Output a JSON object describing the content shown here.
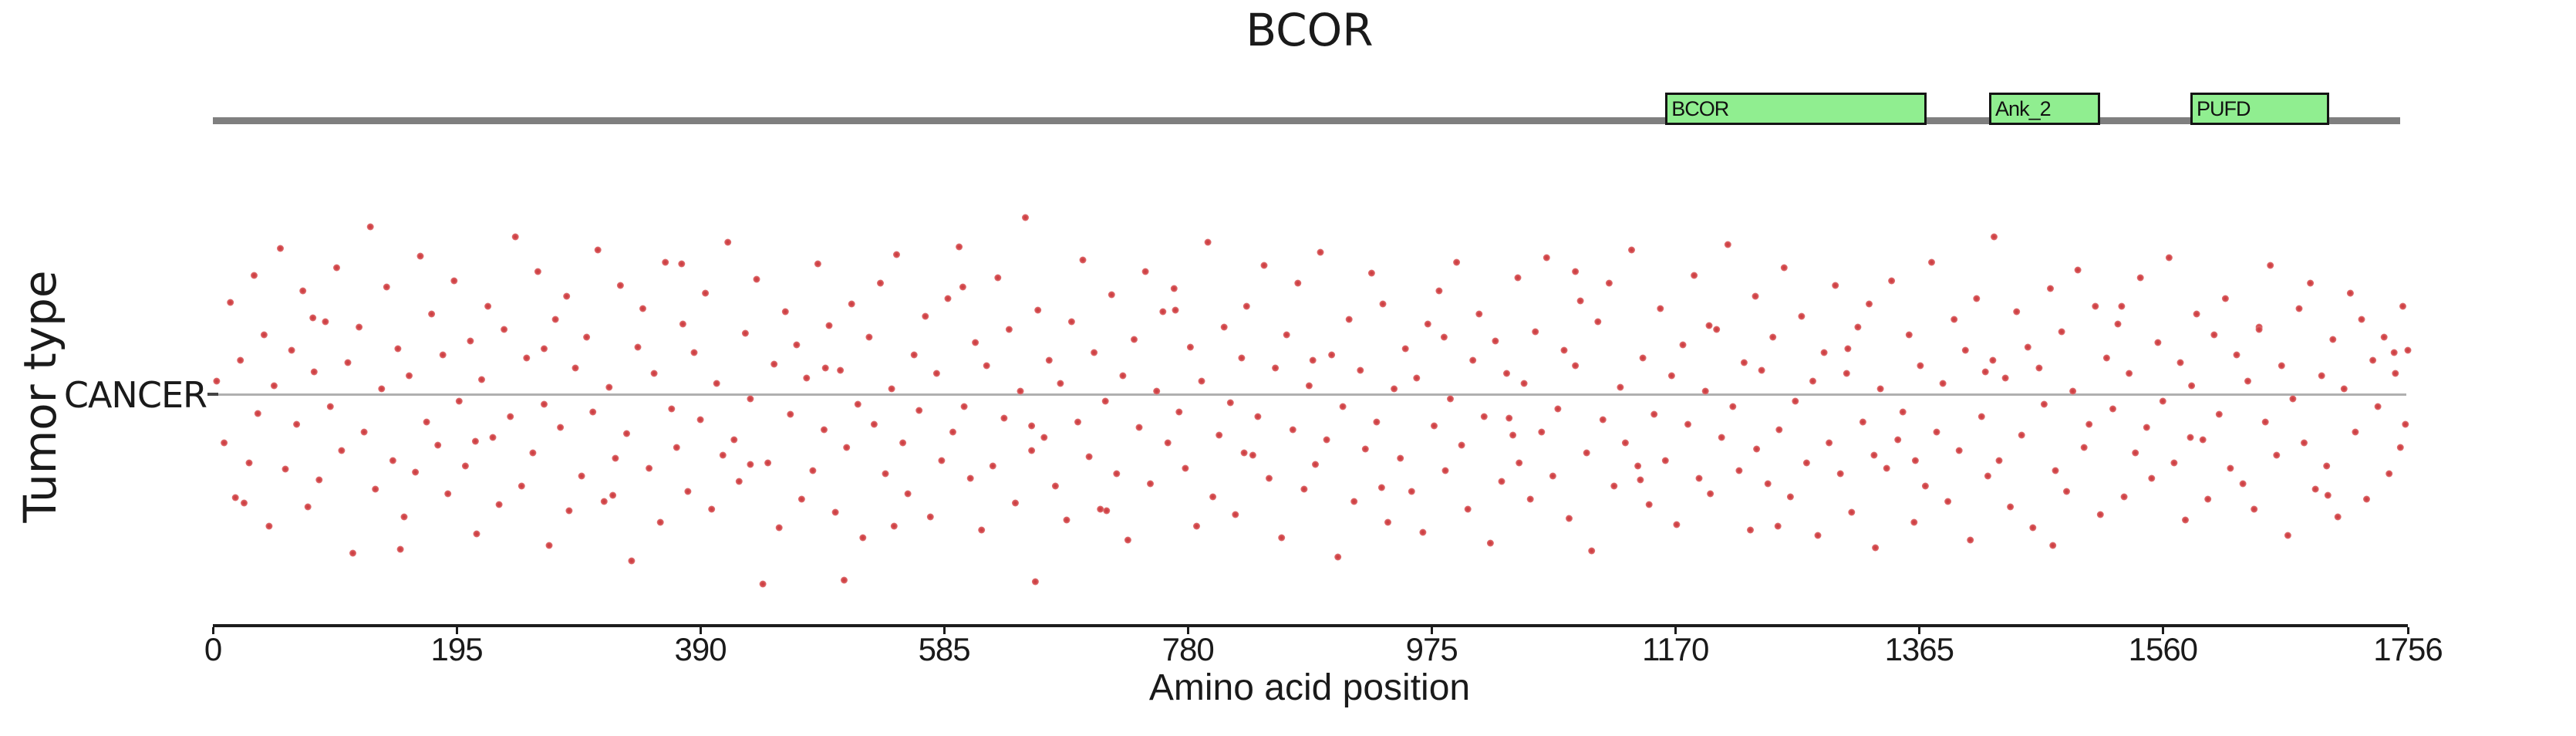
{
  "figure": {
    "title": "BCOR",
    "xlabel": "Amino acid position",
    "ylabel": "Tumor type",
    "category_label": "CANCER"
  },
  "colors": {
    "background": "#ffffff",
    "text": "#1a1a1a",
    "backbone": "#7f7f7f",
    "domain_fill": "#90ee90",
    "domain_border": "#141414",
    "row_line": "#b0b0b0",
    "y_tick": "#444444",
    "axis": "#1c1c1c",
    "point": "#d4494c",
    "point_core": "#c63b3e",
    "point_edge": "#e07a7c"
  },
  "gene": {
    "name": "BCOR",
    "length_aa": 1756,
    "domains": [
      {
        "label": "BCOR",
        "start_aa": 1162,
        "end_aa": 1371
      },
      {
        "label": "Ank_2",
        "start_aa": 1421,
        "end_aa": 1510
      },
      {
        "label": "PUFD",
        "start_aa": 1582,
        "end_aa": 1693
      }
    ]
  },
  "chart_data": {
    "type": "scatter",
    "title": "BCOR",
    "xlabel": "Amino acid position",
    "ylabel": "Tumor type",
    "categories": [
      "CANCER"
    ],
    "xlim": [
      0,
      1756
    ],
    "x_ticks": [
      0,
      195,
      390,
      585,
      780,
      975,
      1170,
      1365,
      1560,
      1756
    ],
    "grid": false,
    "legend": "none",
    "marker": "circle",
    "marker_diameter_px": 9,
    "points_format": "[amino_acid_position, vertical_jitter_px_from_row_line]",
    "points": [
      [
        3,
        -18
      ],
      [
        9,
        62
      ],
      [
        14,
        -120
      ],
      [
        18,
        133
      ],
      [
        22,
        -45
      ],
      [
        29,
        88
      ],
      [
        33,
        -155
      ],
      [
        36,
        24
      ],
      [
        41,
        -78
      ],
      [
        45,
        170
      ],
      [
        49,
        -12
      ],
      [
        54,
        -190
      ],
      [
        58,
        96
      ],
      [
        63,
        -58
      ],
      [
        67,
        38
      ],
      [
        72,
        -135
      ],
      [
        76,
        145
      ],
      [
        81,
        -30
      ],
      [
        85,
        110
      ],
      [
        90,
        -95
      ],
      [
        94,
        15
      ],
      [
        99,
        -165
      ],
      [
        103,
        72
      ],
      [
        108,
        -42
      ],
      [
        112,
        205
      ],
      [
        117,
        -88
      ],
      [
        121,
        48
      ],
      [
        126,
        -218
      ],
      [
        130,
        122
      ],
      [
        135,
        -8
      ],
      [
        139,
        -140
      ],
      [
        144,
        85
      ],
      [
        148,
        -60
      ],
      [
        153,
        158
      ],
      [
        157,
        -25
      ],
      [
        162,
        100
      ],
      [
        166,
        -180
      ],
      [
        171,
        35
      ],
      [
        175,
        -105
      ],
      [
        180,
        65
      ],
      [
        184,
        -52
      ],
      [
        188,
        128
      ],
      [
        193,
        -148
      ],
      [
        197,
        8
      ],
      [
        202,
        92
      ],
      [
        206,
        -70
      ],
      [
        211,
        180
      ],
      [
        215,
        -20
      ],
      [
        220,
        -115
      ],
      [
        224,
        55
      ],
      [
        229,
        142
      ],
      [
        233,
        -85
      ],
      [
        238,
        28
      ],
      [
        242,
        -205
      ],
      [
        247,
        118
      ],
      [
        251,
        -48
      ],
      [
        256,
        75
      ],
      [
        260,
        -160
      ],
      [
        265,
        12
      ],
      [
        269,
        195
      ],
      [
        274,
        -98
      ],
      [
        278,
        42
      ],
      [
        283,
        -128
      ],
      [
        285,
        150
      ],
      [
        290,
        -35
      ],
      [
        295,
        105
      ],
      [
        299,
        -75
      ],
      [
        304,
        22
      ],
      [
        308,
        -188
      ],
      [
        313,
        138
      ],
      [
        317,
        -10
      ],
      [
        322,
        82
      ],
      [
        326,
        -142
      ],
      [
        331,
        50
      ],
      [
        335,
        215
      ],
      [
        340,
        -62
      ],
      [
        344,
        -112
      ],
      [
        349,
        95
      ],
      [
        353,
        -28
      ],
      [
        358,
        165
      ],
      [
        362,
        -172
      ],
      [
        367,
        18
      ],
      [
        371,
        68
      ],
      [
        376,
        -92
      ],
      [
        380,
        125
      ],
      [
        385,
        -55
      ],
      [
        390,
        32
      ],
      [
        394,
        -132
      ],
      [
        399,
        148
      ],
      [
        403,
        -15
      ],
      [
        408,
        78
      ],
      [
        412,
        -198
      ],
      [
        417,
        58
      ],
      [
        421,
        112
      ],
      [
        426,
        -80
      ],
      [
        430,
        5
      ],
      [
        435,
        -150
      ],
      [
        440,
        245
      ],
      [
        444,
        88
      ],
      [
        449,
        -40
      ],
      [
        453,
        172
      ],
      [
        458,
        -108
      ],
      [
        462,
        25
      ],
      [
        467,
        -65
      ],
      [
        471,
        135
      ],
      [
        475,
        -22
      ],
      [
        480,
        98
      ],
      [
        484,
        -170
      ],
      [
        489,
        45
      ],
      [
        493,
        -90
      ],
      [
        498,
        152
      ],
      [
        502,
        -32
      ],
      [
        505,
        240
      ],
      [
        507,
        68
      ],
      [
        511,
        -118
      ],
      [
        516,
        12
      ],
      [
        520,
        185
      ],
      [
        525,
        -75
      ],
      [
        529,
        38
      ],
      [
        534,
        -145
      ],
      [
        538,
        102
      ],
      [
        543,
        -8
      ],
      [
        547,
        -182
      ],
      [
        552,
        62
      ],
      [
        556,
        128
      ],
      [
        561,
        -52
      ],
      [
        565,
        20
      ],
      [
        570,
        -102
      ],
      [
        574,
        158
      ],
      [
        579,
        -28
      ],
      [
        583,
        85
      ],
      [
        588,
        -125
      ],
      [
        592,
        48
      ],
      [
        597,
        -192
      ],
      [
        601,
        15
      ],
      [
        606,
        108
      ],
      [
        610,
        -68
      ],
      [
        615,
        175
      ],
      [
        619,
        -38
      ],
      [
        624,
        92
      ],
      [
        628,
        -152
      ],
      [
        633,
        30
      ],
      [
        637,
        -85
      ],
      [
        642,
        140
      ],
      [
        646,
        -5
      ],
      [
        650,
        -230
      ],
      [
        655,
        72
      ],
      [
        658,
        242
      ],
      [
        660,
        -110
      ],
      [
        665,
        55
      ],
      [
        669,
        -45
      ],
      [
        674,
        118
      ],
      [
        678,
        -15
      ],
      [
        683,
        162
      ],
      [
        687,
        -95
      ],
      [
        692,
        35
      ],
      [
        696,
        -175
      ],
      [
        701,
        80
      ],
      [
        705,
        -55
      ],
      [
        710,
        148
      ],
      [
        714,
        8
      ],
      [
        719,
        -130
      ],
      [
        723,
        102
      ],
      [
        728,
        -25
      ],
      [
        732,
        188
      ],
      [
        737,
        -72
      ],
      [
        741,
        42
      ],
      [
        746,
        -160
      ],
      [
        750,
        115
      ],
      [
        755,
        -5
      ],
      [
        760,
        -108
      ],
      [
        764,
        62
      ],
      [
        769,
        -138
      ],
      [
        773,
        22
      ],
      [
        778,
        95
      ],
      [
        782,
        -62
      ],
      [
        787,
        170
      ],
      [
        791,
        -18
      ],
      [
        796,
        -198
      ],
      [
        800,
        132
      ],
      [
        805,
        52
      ],
      [
        809,
        -88
      ],
      [
        814,
        10
      ],
      [
        818,
        155
      ],
      [
        823,
        -48
      ],
      [
        827,
        -115
      ],
      [
        832,
        78
      ],
      [
        836,
        28
      ],
      [
        841,
        -168
      ],
      [
        845,
        108
      ],
      [
        850,
        -35
      ],
      [
        855,
        185
      ],
      [
        859,
        -78
      ],
      [
        864,
        45
      ],
      [
        868,
        -145
      ],
      [
        873,
        122
      ],
      [
        877,
        -12
      ],
      [
        882,
        90
      ],
      [
        886,
        -185
      ],
      [
        891,
        58
      ],
      [
        895,
        -52
      ],
      [
        900,
        210
      ],
      [
        904,
        15
      ],
      [
        909,
        -98
      ],
      [
        913,
        138
      ],
      [
        918,
        -32
      ],
      [
        922,
        70
      ],
      [
        927,
        -158
      ],
      [
        931,
        35
      ],
      [
        936,
        -118
      ],
      [
        940,
        165
      ],
      [
        945,
        -8
      ],
      [
        950,
        82
      ],
      [
        954,
        -60
      ],
      [
        959,
        125
      ],
      [
        963,
        -22
      ],
      [
        968,
        178
      ],
      [
        972,
        -92
      ],
      [
        977,
        40
      ],
      [
        981,
        -135
      ],
      [
        986,
        98
      ],
      [
        990,
        5
      ],
      [
        995,
        -172
      ],
      [
        999,
        65
      ],
      [
        1004,
        148
      ],
      [
        1008,
        -45
      ],
      [
        1013,
        -105
      ],
      [
        1017,
        28
      ],
      [
        1022,
        192
      ],
      [
        1026,
        -70
      ],
      [
        1031,
        112
      ],
      [
        1035,
        -28
      ],
      [
        1040,
        52
      ],
      [
        1044,
        -152
      ],
      [
        1045,
        88
      ],
      [
        1049,
        -15
      ],
      [
        1054,
        135
      ],
      [
        1058,
        -82
      ],
      [
        1063,
        48
      ],
      [
        1067,
        -178
      ],
      [
        1072,
        105
      ],
      [
        1076,
        18
      ],
      [
        1081,
        -58
      ],
      [
        1085,
        160
      ],
      [
        1090,
        -38
      ],
      [
        1094,
        -122
      ],
      [
        1099,
        75
      ],
      [
        1103,
        202
      ],
      [
        1108,
        -95
      ],
      [
        1112,
        32
      ],
      [
        1117,
        -145
      ],
      [
        1121,
        118
      ],
      [
        1126,
        -10
      ],
      [
        1130,
        62
      ],
      [
        1135,
        -188
      ],
      [
        1140,
        92
      ],
      [
        1144,
        -48
      ],
      [
        1149,
        142
      ],
      [
        1153,
        25
      ],
      [
        1158,
        -112
      ],
      [
        1162,
        85
      ],
      [
        1167,
        -25
      ],
      [
        1171,
        168
      ],
      [
        1176,
        -65
      ],
      [
        1180,
        38
      ],
      [
        1185,
        -155
      ],
      [
        1189,
        108
      ],
      [
        1194,
        -5
      ],
      [
        1198,
        128
      ],
      [
        1203,
        -85
      ],
      [
        1207,
        55
      ],
      [
        1212,
        -195
      ],
      [
        1216,
        15
      ],
      [
        1221,
        98
      ],
      [
        1225,
        -42
      ],
      [
        1230,
        175
      ],
      [
        1234,
        -128
      ],
      [
        1235,
        70
      ],
      [
        1239,
        -32
      ],
      [
        1244,
        115
      ],
      [
        1248,
        -75
      ],
      [
        1253,
        45
      ],
      [
        1257,
        -165
      ],
      [
        1262,
        132
      ],
      [
        1266,
        8
      ],
      [
        1271,
        -102
      ],
      [
        1275,
        88
      ],
      [
        1280,
        -18
      ],
      [
        1284,
        182
      ],
      [
        1289,
        -55
      ],
      [
        1293,
        62
      ],
      [
        1298,
        -142
      ],
      [
        1302,
        102
      ],
      [
        1307,
        -28
      ],
      [
        1311,
        152
      ],
      [
        1316,
        -88
      ],
      [
        1320,
        35
      ],
      [
        1325,
        -118
      ],
      [
        1329,
        78
      ],
      [
        1330,
        198
      ],
      [
        1334,
        -8
      ],
      [
        1339,
        95
      ],
      [
        1343,
        -148
      ],
      [
        1348,
        58
      ],
      [
        1352,
        22
      ],
      [
        1357,
        -78
      ],
      [
        1361,
        165
      ],
      [
        1366,
        -38
      ],
      [
        1370,
        118
      ],
      [
        1375,
        -172
      ],
      [
        1379,
        48
      ],
      [
        1384,
        -15
      ],
      [
        1388,
        138
      ],
      [
        1393,
        -98
      ],
      [
        1397,
        72
      ],
      [
        1402,
        -58
      ],
      [
        1406,
        188
      ],
      [
        1411,
        -125
      ],
      [
        1415,
        28
      ],
      [
        1420,
        105
      ],
      [
        1424,
        -45
      ],
      [
        1425,
        -205
      ],
      [
        1429,
        85
      ],
      [
        1434,
        -22
      ],
      [
        1438,
        145
      ],
      [
        1443,
        -108
      ],
      [
        1447,
        52
      ],
      [
        1452,
        -62
      ],
      [
        1456,
        172
      ],
      [
        1461,
        -35
      ],
      [
        1465,
        12
      ],
      [
        1470,
        -138
      ],
      [
        1474,
        98
      ],
      [
        1479,
        -82
      ],
      [
        1483,
        125
      ],
      [
        1488,
        -5
      ],
      [
        1492,
        -162
      ],
      [
        1497,
        68
      ],
      [
        1501,
        38
      ],
      [
        1506,
        -115
      ],
      [
        1510,
        155
      ],
      [
        1515,
        -48
      ],
      [
        1520,
        18
      ],
      [
        1524,
        -92
      ],
      [
        1529,
        132
      ],
      [
        1533,
        -28
      ],
      [
        1538,
        75
      ],
      [
        1542,
        -152
      ],
      [
        1547,
        42
      ],
      [
        1551,
        108
      ],
      [
        1556,
        -68
      ],
      [
        1560,
        8
      ],
      [
        1565,
        -178
      ],
      [
        1569,
        88
      ],
      [
        1574,
        -42
      ],
      [
        1578,
        162
      ],
      [
        1583,
        -12
      ],
      [
        1587,
        -105
      ],
      [
        1592,
        58
      ],
      [
        1596,
        135
      ],
      [
        1601,
        -78
      ],
      [
        1605,
        25
      ],
      [
        1610,
        -125
      ],
      [
        1614,
        95
      ],
      [
        1619,
        -52
      ],
      [
        1624,
        115
      ],
      [
        1628,
        -18
      ],
      [
        1633,
        148
      ],
      [
        1637,
        -88
      ],
      [
        1642,
        35
      ],
      [
        1646,
        -168
      ],
      [
        1651,
        78
      ],
      [
        1655,
        -38
      ],
      [
        1660,
        182
      ],
      [
        1664,
        5
      ],
      [
        1669,
        -112
      ],
      [
        1673,
        62
      ],
      [
        1678,
        -145
      ],
      [
        1682,
        122
      ],
      [
        1687,
        -25
      ],
      [
        1691,
        92
      ],
      [
        1696,
        -72
      ],
      [
        1700,
        158
      ],
      [
        1705,
        -8
      ],
      [
        1710,
        -132
      ],
      [
        1714,
        48
      ],
      [
        1719,
        -98
      ],
      [
        1723,
        135
      ],
      [
        1728,
        -45
      ],
      [
        1732,
        15
      ],
      [
        1737,
        -75
      ],
      [
        1741,
        102
      ],
      [
        1746,
        -28
      ],
      [
        1750,
        68
      ],
      [
        1752,
        -115
      ],
      [
        1754,
        38
      ],
      [
        1756,
        -58
      ],
      [
        25,
        140
      ],
      [
        80,
        -100
      ],
      [
        150,
        200
      ],
      [
        210,
        60
      ],
      [
        265,
        -60
      ],
      [
        320,
        130
      ],
      [
        375,
        -170
      ],
      [
        430,
        90
      ],
      [
        490,
        -35
      ],
      [
        545,
        170
      ],
      [
        600,
        -140
      ],
      [
        655,
        40
      ],
      [
        715,
        150
      ],
      [
        770,
        -110
      ],
      [
        825,
        75
      ],
      [
        880,
        -45
      ],
      [
        935,
        120
      ],
      [
        985,
        -75
      ],
      [
        1037,
        30
      ],
      [
        1090,
        -160
      ],
      [
        1142,
        110
      ],
      [
        1197,
        -90
      ],
      [
        1252,
        170
      ],
      [
        1308,
        -60
      ],
      [
        1362,
        85
      ],
      [
        1418,
        -30
      ],
      [
        1472,
        195
      ],
      [
        1527,
        -115
      ],
      [
        1582,
        55
      ],
      [
        1637,
        -85
      ],
      [
        1692,
        130
      ],
      [
        1745,
        -55
      ]
    ]
  }
}
